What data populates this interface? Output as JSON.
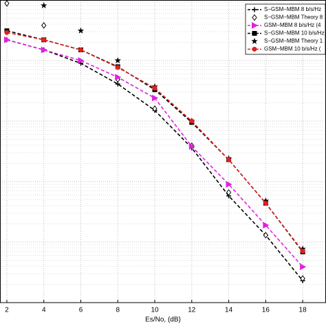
{
  "chart_data": {
    "type": "line",
    "x_label": "Es/No, (dB)",
    "x": [
      2,
      4,
      6,
      8,
      10,
      12,
      14,
      16,
      18
    ],
    "xlim": [
      1.63,
      19.26
    ],
    "xticks": [
      2,
      4,
      6,
      8,
      10,
      12,
      14,
      16,
      18
    ],
    "ylim": [
      1e-06,
      0.1
    ],
    "log_y": true,
    "grid": true,
    "legend": "upper right",
    "series": [
      {
        "name": "S−GSM−MBM 8 b/s/Hz",
        "color": "#000000",
        "marker": "plus",
        "linestyle": "dashed",
        "values": [
          0.022,
          0.015,
          0.009,
          0.0041,
          0.0015,
          0.00036,
          5.8e-05,
          1.3e-05,
          2.3e-06
        ]
      },
      {
        "name": "S−GSM−MBM Theory 8",
        "color": "#000000",
        "marker": "diamond",
        "linestyle": "none",
        "values": [
          0.088,
          0.038,
          null,
          0.0049,
          0.0016,
          0.00039,
          6.6e-05,
          1.3e-05,
          2.5e-06
        ]
      },
      {
        "name": "GSM−MBM 8 b/s/Hz (4",
        "color": "#e020e0",
        "marker": "triangle",
        "linestyle": "dashed",
        "values": [
          0.022,
          0.015,
          0.01,
          0.0053,
          0.0024,
          0.00038,
          9e-05,
          1.9e-05,
          3.9e-06
        ]
      },
      {
        "name": "S−GSM−MBM 10 b/s/Hz",
        "color": "#000000",
        "marker": "square",
        "linestyle": "dashed",
        "values": [
          0.031,
          0.022,
          0.015,
          0.0079,
          0.0033,
          0.00095,
          0.00023,
          4.4e-05,
          6.9e-06
        ]
      },
      {
        "name": "S−GSM−MBM Theory 1",
        "color": "#000000",
        "marker": "star",
        "linestyle": "none",
        "values": [
          null,
          0.081,
          0.031,
          0.01,
          0.0037,
          0.001,
          0.00024,
          4.8e-05,
          7.7e-06
        ]
      },
      {
        "name": "GSM−MBM 10 b/s/Hz (",
        "color": "#e02020",
        "marker": "circle",
        "linestyle": "dashed",
        "values": [
          0.029,
          0.022,
          0.015,
          0.0077,
          0.0035,
          0.001,
          0.00023,
          4.4e-05,
          7.1e-06
        ]
      }
    ]
  }
}
